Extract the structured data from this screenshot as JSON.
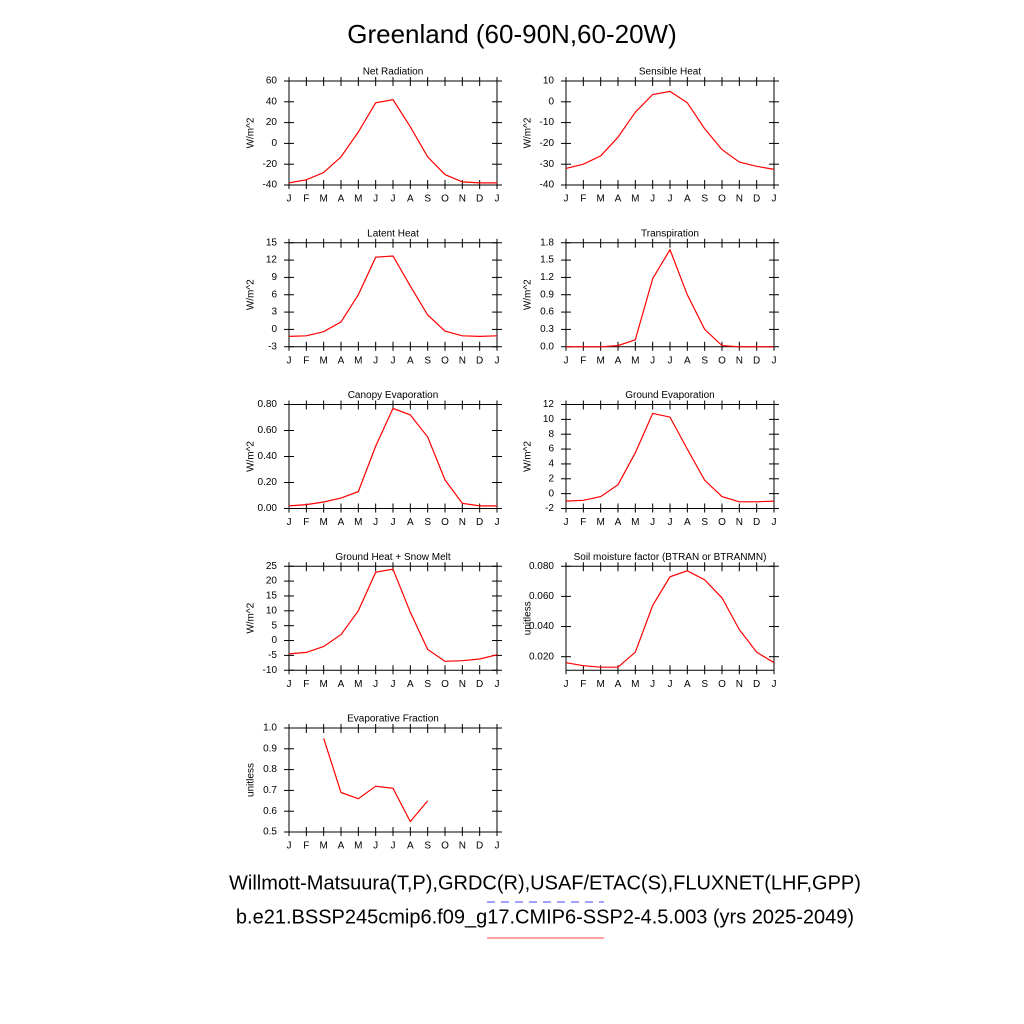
{
  "title": "Greenland (60-90N,60-20W)",
  "footer": [
    "Willmott-Matsuura(T,P),GRDC(R),USAF/ETAC(S),FLUXNET(LHF,GPP)",
    "b.e21.BSSP245cmip6.f09_g17.CMIP6-SSP2-4.5.003 (yrs 2025-2049)"
  ],
  "chart_data": [
    {
      "type": "line",
      "title": "Net Radiation",
      "ylabel": "W/m^2",
      "color": "#ff0000",
      "categories": [
        "J",
        "F",
        "M",
        "A",
        "M",
        "J",
        "J",
        "A",
        "S",
        "O",
        "N",
        "D",
        "J"
      ],
      "values": [
        -38,
        -35,
        -28,
        -13,
        11,
        39,
        42,
        16,
        -13,
        -30,
        -37,
        -38,
        -38
      ],
      "ylim": [
        -40,
        60
      ],
      "yticks": [
        -40,
        -20,
        0,
        20,
        40,
        60
      ]
    },
    {
      "type": "line",
      "title": "Sensible Heat",
      "ylabel": "W/m^2",
      "color": "#ff0000",
      "categories": [
        "J",
        "F",
        "M",
        "A",
        "M",
        "J",
        "J",
        "A",
        "S",
        "O",
        "N",
        "D",
        "J"
      ],
      "values": [
        -32,
        -30,
        -26,
        -17,
        -5,
        3.5,
        5,
        -0.5,
        -13,
        -23,
        -29,
        -31,
        -32.5
      ],
      "ylim": [
        -40,
        10
      ],
      "yticks": [
        -40,
        -30,
        -20,
        -10,
        0,
        10
      ]
    },
    {
      "type": "line",
      "title": "Latent Heat",
      "ylabel": "W/m^2",
      "color": "#ff0000",
      "categories": [
        "J",
        "F",
        "M",
        "A",
        "M",
        "J",
        "J",
        "A",
        "S",
        "O",
        "N",
        "D",
        "J"
      ],
      "values": [
        -1.2,
        -1.1,
        -0.4,
        1.3,
        6,
        12.5,
        12.7,
        7.5,
        2.5,
        -0.3,
        -1.1,
        -1.2,
        -1.1
      ],
      "ylim": [
        -3,
        15
      ],
      "yticks": [
        -3,
        0,
        3,
        6,
        9,
        12,
        15
      ]
    },
    {
      "type": "line",
      "title": "Transpiration",
      "ylabel": "W/m^2",
      "color": "#ff0000",
      "categories": [
        "J",
        "F",
        "M",
        "A",
        "M",
        "J",
        "J",
        "A",
        "S",
        "O",
        "N",
        "D",
        "J"
      ],
      "values": [
        0,
        0,
        0,
        0.02,
        0.12,
        1.18,
        1.68,
        0.9,
        0.3,
        0.02,
        0,
        0,
        0
      ],
      "ylim": [
        0,
        1.8
      ],
      "yticks": [
        {
          "value": 0,
          "label": "0.0"
        },
        0.3,
        0.6,
        0.9,
        1.2,
        1.5,
        1.8
      ]
    },
    {
      "type": "line",
      "title": "Canopy Evaporation",
      "ylabel": "W/m^2",
      "color": "#ff0000",
      "categories": [
        "J",
        "F",
        "M",
        "A",
        "M",
        "J",
        "J",
        "A",
        "S",
        "O",
        "N",
        "D",
        "J"
      ],
      "values": [
        0.02,
        0.03,
        0.05,
        0.08,
        0.13,
        0.48,
        0.77,
        0.72,
        0.55,
        0.22,
        0.04,
        0.02,
        0.02
      ],
      "ylim": [
        0,
        0.8
      ],
      "yticks": [
        {
          "value": 0,
          "label": "0.00"
        },
        {
          "value": 0.2,
          "label": "0.20"
        },
        {
          "value": 0.4,
          "label": "0.40"
        },
        {
          "value": 0.6,
          "label": "0.60"
        },
        {
          "value": 0.8,
          "label": "0.80"
        }
      ]
    },
    {
      "type": "line",
      "title": "Ground Evaporation",
      "ylabel": "W/m^2",
      "color": "#ff0000",
      "categories": [
        "J",
        "F",
        "M",
        "A",
        "M",
        "J",
        "J",
        "A",
        "S",
        "O",
        "N",
        "D",
        "J"
      ],
      "values": [
        -1,
        -0.9,
        -0.4,
        1.2,
        5.5,
        10.8,
        10.3,
        6,
        1.8,
        -0.4,
        -1.1,
        -1.1,
        -1
      ],
      "ylim": [
        -2,
        12
      ],
      "yticks": [
        -2,
        0,
        2,
        4,
        6,
        8,
        10,
        12
      ]
    },
    {
      "type": "line",
      "title": "Ground Heat + Snow Melt",
      "ylabel": "W/m^2",
      "color": "#ff0000",
      "categories": [
        "J",
        "F",
        "M",
        "A",
        "M",
        "J",
        "J",
        "A",
        "S",
        "O",
        "N",
        "D",
        "J"
      ],
      "values": [
        -4.5,
        -4,
        -2,
        2,
        10,
        23,
        24,
        9.5,
        -3,
        -7,
        -6.8,
        -6.2,
        -4.8
      ],
      "ylim": [
        -10,
        25
      ],
      "yticks": [
        -10,
        -5,
        0,
        5,
        10,
        15,
        20,
        25
      ]
    },
    {
      "type": "line",
      "title": "Soil moisture factor (BTRAN or BTRANMN)",
      "ylabel": "unitless",
      "color": "#ff0000",
      "categories": [
        "J",
        "F",
        "M",
        "A",
        "M",
        "J",
        "J",
        "A",
        "S",
        "O",
        "N",
        "D",
        "J"
      ],
      "values": [
        0.016,
        0.014,
        0.013,
        0.013,
        0.023,
        0.054,
        0.073,
        0.077,
        0.071,
        0.059,
        0.038,
        0.023,
        0.016
      ],
      "ylim": [
        0.011,
        0.08
      ],
      "yticks": [
        {
          "value": 0.02,
          "label": "0.020"
        },
        {
          "value": 0.04,
          "label": "0.040"
        },
        {
          "value": 0.06,
          "label": "0.060"
        },
        {
          "value": 0.08,
          "label": "0.080"
        }
      ]
    },
    {
      "type": "line",
      "title": "Evaporative Fraction",
      "ylabel": "unitless",
      "color": "#ff0000",
      "categories": [
        "J",
        "F",
        "M",
        "A",
        "M",
        "J",
        "J",
        "A",
        "S",
        "O",
        "N",
        "D",
        "J"
      ],
      "values": [
        null,
        null,
        0.95,
        0.69,
        0.66,
        0.72,
        0.71,
        0.55,
        0.65,
        null,
        null,
        null,
        null
      ],
      "ylim": [
        0.5,
        1.0
      ],
      "yticks": [
        0.5,
        0.6,
        0.7,
        0.8,
        0.9,
        {
          "value": 1,
          "label": "1.0"
        }
      ]
    }
  ]
}
